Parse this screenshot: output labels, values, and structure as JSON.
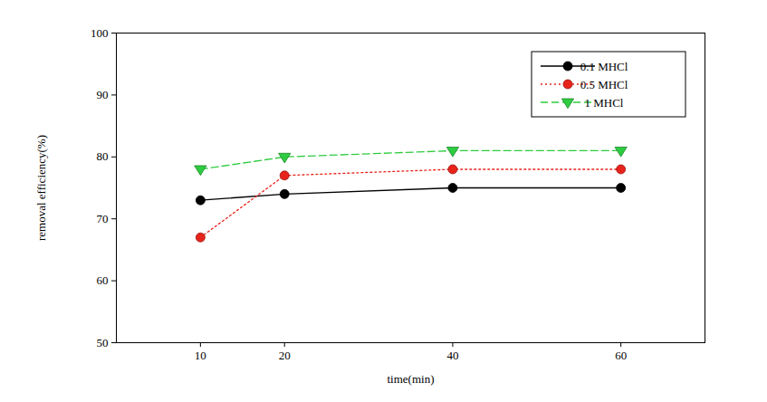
{
  "chart_data": {
    "type": "line",
    "x_label": "time(min)",
    "y_label": "removal efficiency(%)",
    "x": [
      10,
      20,
      40,
      60
    ],
    "series": [
      {
        "name": "0.1 MHCl",
        "color": "#000000",
        "marker": "circle",
        "line_style": "solid",
        "values": [
          73,
          74,
          75,
          75
        ]
      },
      {
        "name": "0.5 MHCl",
        "color": "#e8231b",
        "marker": "circle",
        "line_style": "dotted",
        "values": [
          67,
          77,
          78,
          78
        ]
      },
      {
        "name": "1 MHCl",
        "color": "#2ecc40",
        "marker": "triangle-down",
        "line_style": "dashed",
        "values": [
          78,
          80,
          81,
          81
        ]
      }
    ],
    "xlim": [
      0,
      70
    ],
    "ylim": [
      50,
      100
    ],
    "xticks": [
      10,
      20,
      40,
      60
    ],
    "yticks": [
      50,
      60,
      70,
      80,
      90,
      100
    ],
    "legend": "top-right"
  }
}
